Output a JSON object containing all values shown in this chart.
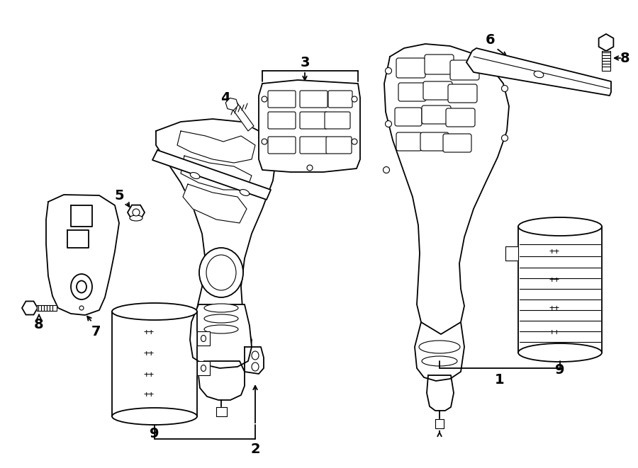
{
  "bg_color": "#ffffff",
  "line_color": "#000000",
  "lw": 1.3,
  "lw_thin": 0.8,
  "label_fs": 14
}
